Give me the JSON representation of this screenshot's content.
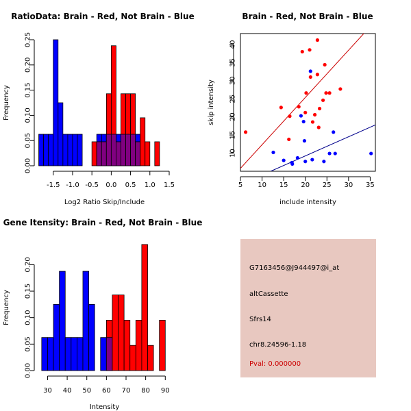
{
  "colors": {
    "red": "#ff0000",
    "blue": "#0000ff",
    "purple": "#800080",
    "panel_bg": "#e8c8c0",
    "pval": "#cc0000",
    "line_red": "#cc0000",
    "line_blue": "#00008b"
  },
  "chart_data": [
    {
      "type": "bar",
      "id": "ratio_hist",
      "title": "RatioData: Brain - Red, Not Brain - Blue",
      "xlabel": "Log2 Ratio Skip/Include",
      "ylabel": "Frequency",
      "xlim": [
        -1.85,
        1.5
      ],
      "ylim": [
        0,
        0.25
      ],
      "xticks": [
        "-1.5",
        "-1.0",
        "-0.5",
        "0.0",
        "0.5",
        "1.0",
        "1.5"
      ],
      "xtick_values": [
        -1.5,
        -1.0,
        -0.5,
        0.0,
        0.5,
        1.0,
        1.5
      ],
      "yticks": [
        "0.00",
        "0.05",
        "0.10",
        "0.15",
        "0.20",
        "0.25"
      ],
      "ytick_values": [
        0,
        0.05,
        0.1,
        0.15,
        0.2,
        0.25
      ],
      "bin_width": 0.125,
      "series": [
        {
          "name": "Not Brain",
          "color": "blue",
          "starts": [
            -1.875,
            -1.75,
            -1.625,
            -1.5,
            -1.375,
            -1.25,
            -1.125,
            -1.0,
            -0.875,
            -0.375,
            -0.25,
            -0.125,
            0.0,
            0.125,
            0.25,
            0.375,
            0.5,
            0.625
          ],
          "values": [
            0.0625,
            0.0625,
            0.0625,
            0.25,
            0.125,
            0.0625,
            0.0625,
            0.0625,
            0.0625,
            0.0625,
            0.0625,
            0.0625,
            0.0625,
            0.0625,
            0.0625,
            0.0625,
            0.0625,
            0.0625
          ]
        },
        {
          "name": "Brain",
          "color": "red",
          "starts": [
            -0.5,
            -0.375,
            -0.25,
            -0.125,
            0.0,
            0.125,
            0.25,
            0.375,
            0.5,
            0.625,
            0.75,
            0.875,
            1.125
          ],
          "values": [
            0.0476,
            0.0476,
            0.0476,
            0.1429,
            0.2381,
            0.0476,
            0.1429,
            0.1429,
            0.1429,
            0.0476,
            0.0952,
            0.0476,
            0.0476
          ]
        }
      ]
    },
    {
      "type": "scatter",
      "id": "intensity_scatter",
      "title": "Brain - Red, Not Brain - Blue",
      "xlabel": "include intensity",
      "ylabel": "skip intensity",
      "xlim": [
        5,
        36.2
      ],
      "ylim": [
        5,
        43
      ],
      "xticks": [
        "5",
        "10",
        "15",
        "20",
        "25",
        "30",
        "35"
      ],
      "xtick_values": [
        5,
        10,
        15,
        20,
        25,
        30,
        35
      ],
      "yticks": [
        "10",
        "15",
        "20",
        "25",
        "30",
        "35",
        "40"
      ],
      "ytick_values": [
        10,
        15,
        20,
        25,
        30,
        35,
        40
      ],
      "series": [
        {
          "name": "Brain",
          "color": "red",
          "points": [
            [
              6.2,
              15.8
            ],
            [
              14.4,
              22.6
            ],
            [
              16.2,
              13.8
            ],
            [
              16.4,
              20.2
            ],
            [
              18.5,
              22.8
            ],
            [
              19.3,
              38.0
            ],
            [
              20,
              21.2
            ],
            [
              20.2,
              26.6
            ],
            [
              21.0,
              38.5
            ],
            [
              21.2,
              31.0
            ],
            [
              21.7,
              18.6
            ],
            [
              22.2,
              20.6
            ],
            [
              22.8,
              31.7
            ],
            [
              22.8,
              41.2
            ],
            [
              23.1,
              17.1
            ],
            [
              23.3,
              22.3
            ],
            [
              24.1,
              24.6
            ],
            [
              24.5,
              34.4
            ],
            [
              24.8,
              26.6
            ],
            [
              25.6,
              26.6
            ],
            [
              28.1,
              27.7
            ]
          ],
          "line": [
            [
              5,
              5.8
            ],
            [
              36.2,
              46.5
            ]
          ]
        },
        {
          "name": "Not Brain",
          "color": "blue",
          "points": [
            [
              12.6,
              10.2
            ],
            [
              15.0,
              8.0
            ],
            [
              16.9,
              7.4
            ],
            [
              17.0,
              7.0
            ],
            [
              18.2,
              8.7
            ],
            [
              19.0,
              20.3
            ],
            [
              19.6,
              18.7
            ],
            [
              19.8,
              13.4
            ],
            [
              20.0,
              7.7
            ],
            [
              21.2,
              32.6
            ],
            [
              21.6,
              8.2
            ],
            [
              24.3,
              7.7
            ],
            [
              25.6,
              9.9
            ],
            [
              26.5,
              15.8
            ],
            [
              26.9,
              9.9
            ],
            [
              35.2,
              9.9
            ]
          ],
          "line": [
            [
              12,
              5
            ],
            [
              36.2,
              17.8
            ]
          ]
        }
      ]
    },
    {
      "type": "bar",
      "id": "intensity_hist",
      "title": "Gene Itensity: Brain - Red, Not Brain - Blue",
      "xlabel": "Intensity",
      "ylabel": "Frequency",
      "xlim": [
        26,
        92
      ],
      "ylim": [
        0,
        0.238
      ],
      "xticks": [
        "30",
        "40",
        "50",
        "60",
        "70",
        "80",
        "90"
      ],
      "xtick_values": [
        30,
        40,
        50,
        60,
        70,
        80,
        90
      ],
      "yticks": [
        "0.00",
        "0.05",
        "0.10",
        "0.15",
        "0.20"
      ],
      "ytick_values": [
        0,
        0.05,
        0.1,
        0.15,
        0.2
      ],
      "bin_width": 3,
      "series": [
        {
          "name": "Not Brain",
          "color": "blue",
          "starts": [
            27,
            30,
            33,
            36,
            39,
            42,
            45,
            48,
            51,
            57,
            60
          ],
          "values": [
            0.0625,
            0.0625,
            0.125,
            0.1875,
            0.0625,
            0.0625,
            0.0625,
            0.1875,
            0.125,
            0.0625,
            0.0625
          ]
        },
        {
          "name": "Brain",
          "color": "red",
          "starts": [
            60,
            63,
            66,
            69,
            72,
            75,
            78,
            81,
            87
          ],
          "values": [
            0.0952,
            0.1429,
            0.1429,
            0.0952,
            0.0476,
            0.0952,
            0.2381,
            0.0476,
            0.0952
          ]
        }
      ]
    }
  ],
  "info": {
    "probe": "G7163456@J944497@i_at",
    "event": "altCassette",
    "gene": "Sfrs14",
    "location": "chr8.24596-1.18",
    "pval": "Pval: 0.000000"
  }
}
